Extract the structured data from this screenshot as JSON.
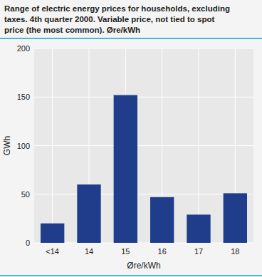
{
  "chart_data": {
    "type": "bar",
    "title": "Range of electric energy prices for households, excluding\ntaxes. 4th quarter 2000. Variable price, not tied to spot\nprice (the most common). Øre/kWh",
    "categories": [
      "<14",
      "14",
      "15",
      "16",
      "17",
      "18"
    ],
    "values": [
      20,
      60,
      152,
      47,
      29,
      51
    ],
    "color": "#1f3d8a",
    "xlabel": "Øre/kWh",
    "ylabel": "GWh",
    "ylim": [
      0,
      200
    ],
    "yticks": [
      0,
      50,
      100,
      150,
      200
    ],
    "grid": true
  }
}
